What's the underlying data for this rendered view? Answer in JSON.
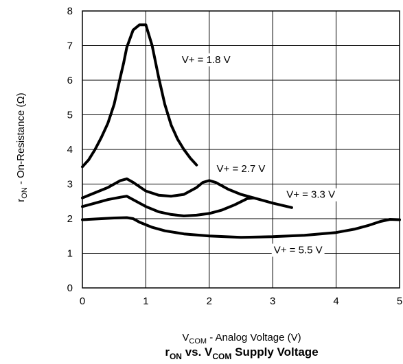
{
  "chart_data": {
    "type": "line",
    "title": "r_ON vs. V_COM Supply Voltage",
    "title_parts": {
      "r": "r",
      "r_sub": "ON",
      "mid": " vs. V",
      "mid_sub": "COM",
      "end": " Supply Voltage"
    },
    "xlabel": "V_COM - Analog Voltage (V)",
    "xlabel_parts": {
      "v": "V",
      "v_sub": "COM",
      "rest": " - Analog Voltage (V)"
    },
    "ylabel": "r_ON - On-Resistance (Ω)",
    "ylabel_parts": {
      "r": "r",
      "r_sub": "ON",
      "rest": " - On-Resistance (Ω)"
    },
    "xlim": [
      0,
      5
    ],
    "ylim": [
      0,
      8
    ],
    "xticks": [
      0,
      1,
      2,
      3,
      4,
      5
    ],
    "yticks": [
      0,
      1,
      2,
      3,
      4,
      5,
      6,
      7,
      8
    ],
    "grid": true,
    "line_color": "#000000",
    "series": [
      {
        "name": "V+ = 1.8 V",
        "x": [
          0,
          0.1,
          0.2,
          0.3,
          0.4,
          0.5,
          0.6,
          0.65,
          0.7,
          0.8,
          0.9,
          1.0,
          1.1,
          1.2,
          1.3,
          1.4,
          1.5,
          1.6,
          1.7,
          1.8
        ],
        "y": [
          3.5,
          3.7,
          4.0,
          4.35,
          4.75,
          5.3,
          6.1,
          6.5,
          6.95,
          7.45,
          7.6,
          7.6,
          7.0,
          6.1,
          5.3,
          4.7,
          4.3,
          4.0,
          3.75,
          3.55
        ]
      },
      {
        "name": "V+ = 2.7 V",
        "x": [
          0,
          0.2,
          0.4,
          0.6,
          0.7,
          0.8,
          1.0,
          1.2,
          1.4,
          1.6,
          1.8,
          1.9,
          2.0,
          2.1,
          2.3,
          2.5,
          2.7
        ],
        "y": [
          2.6,
          2.75,
          2.9,
          3.1,
          3.15,
          3.05,
          2.8,
          2.68,
          2.65,
          2.7,
          2.9,
          3.05,
          3.1,
          3.05,
          2.85,
          2.7,
          2.6
        ]
      },
      {
        "name": "V+ = 3.3 V",
        "x": [
          0,
          0.2,
          0.4,
          0.6,
          0.7,
          0.8,
          1.0,
          1.2,
          1.4,
          1.6,
          1.8,
          2.0,
          2.2,
          2.4,
          2.6,
          2.7,
          2.8,
          3.0,
          3.3
        ],
        "y": [
          2.35,
          2.45,
          2.55,
          2.62,
          2.65,
          2.55,
          2.35,
          2.2,
          2.12,
          2.08,
          2.1,
          2.15,
          2.25,
          2.4,
          2.58,
          2.6,
          2.55,
          2.45,
          2.32
        ]
      },
      {
        "name": "V+ = 5.5 V",
        "x": [
          0,
          0.3,
          0.5,
          0.7,
          0.8,
          0.9,
          1.1,
          1.3,
          1.6,
          2.0,
          2.5,
          3.0,
          3.5,
          4.0,
          4.3,
          4.5,
          4.7,
          4.85,
          5.0
        ],
        "y": [
          1.97,
          2.0,
          2.02,
          2.03,
          2.0,
          1.9,
          1.75,
          1.65,
          1.56,
          1.5,
          1.46,
          1.48,
          1.52,
          1.6,
          1.7,
          1.8,
          1.92,
          1.98,
          1.97
        ]
      }
    ],
    "annotations": [
      {
        "text": "V+ = 1.8 V",
        "series": 0,
        "x": 1.95,
        "y": 6.5
      },
      {
        "text": "V+ = 2.7 V",
        "series": 1,
        "x": 2.5,
        "y": 3.35
      },
      {
        "text": "V+ = 3.3 V",
        "series": 2,
        "x": 3.6,
        "y": 2.6
      },
      {
        "text": "V+ = 5.5 V",
        "series": 3,
        "x": 3.4,
        "y": 1.0
      }
    ]
  }
}
